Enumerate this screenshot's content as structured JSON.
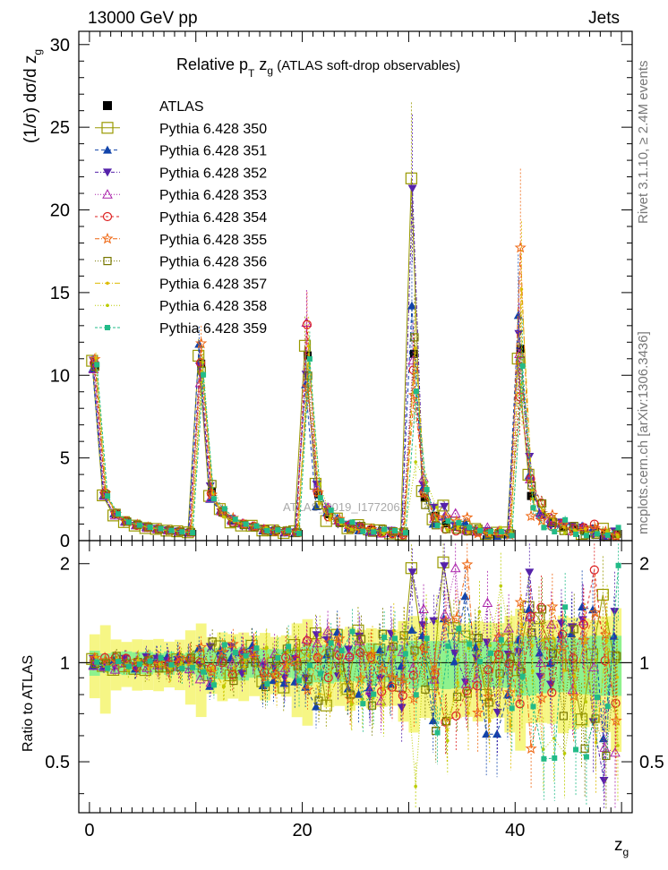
{
  "header": {
    "left": "13000 GeV pp",
    "right": "Jets"
  },
  "title": {
    "main": "Relative p",
    "sub_t": "T",
    "main2": " z",
    "sub_g": "g",
    "paren": " (ATLAS soft-drop observables)"
  },
  "side_text": {
    "rivet": "Rivet 3.1.10, ≥ 2.4M events",
    "mcplots": "mcplots.cern.ch [arXiv:1306.3436]"
  },
  "watermark": "ATLAS_2019_I1772062",
  "chart_data": {
    "type": "scatter",
    "top_panel": {
      "ylabel": "(1/σ) dσ/d z",
      "ylabel_sub": "g",
      "yticks": [
        0,
        5,
        10,
        15,
        20,
        25,
        30
      ],
      "ylim": [
        0,
        30.8
      ],
      "data_x": [
        0.5,
        1.5,
        2.5,
        3.5,
        4.5,
        5.5,
        6.5,
        7.5,
        8.5,
        9.5,
        10.5,
        11.5,
        12.5,
        13.5,
        14.5,
        15.5,
        16.5,
        17.5,
        18.5,
        19.5,
        20.5,
        21.5,
        22.5,
        23.5,
        24.5,
        25.5,
        26.5,
        27.5,
        28.5,
        29.5,
        30.5,
        31.5,
        32.5,
        33.5,
        34.5,
        35.5,
        36.5,
        37.5,
        38.5,
        39.5,
        40.5,
        41.5,
        42.5,
        43.5,
        44.5,
        45.5,
        46.5,
        47.5,
        48.5,
        49.5
      ],
      "data_y": [
        10.6,
        2.8,
        1.6,
        1.15,
        0.95,
        0.8,
        0.7,
        0.62,
        0.55,
        0.5,
        10.7,
        2.95,
        1.7,
        1.2,
        0.95,
        0.8,
        0.7,
        0.62,
        0.55,
        0.5,
        11.2,
        2.8,
        1.6,
        1.1,
        0.9,
        0.75,
        0.65,
        0.57,
        0.5,
        0.45,
        11.3,
        2.6,
        1.5,
        1.05,
        0.85,
        0.7,
        0.6,
        0.52,
        0.46,
        0.42,
        11.6,
        2.7,
        1.55,
        1.05,
        0.85,
        0.7,
        0.6,
        0.52,
        0.45,
        0.4
      ]
    },
    "bottom_panel": {
      "ylabel": "Ratio to ATLAS",
      "yticks": [
        0.5,
        1,
        2
      ],
      "ylim": [
        0.35,
        2.35
      ],
      "yscale": "log"
    },
    "x": {
      "label": "z",
      "label_sub": "g",
      "ticks": [
        0,
        20,
        40
      ],
      "xlim": [
        -1,
        51
      ]
    },
    "series": [
      {
        "name": "ATLAS",
        "color": "#000000",
        "marker": "square-filled"
      },
      {
        "name": "Pythia 6.428 350",
        "color": "#999900",
        "marker": "square-open-large"
      },
      {
        "name": "Pythia 6.428 351",
        "color": "#1144aa",
        "marker": "triangle-up-filled"
      },
      {
        "name": "Pythia 6.428 352",
        "color": "#5522aa",
        "marker": "triangle-down-filled"
      },
      {
        "name": "Pythia 6.428 353",
        "color": "#aa22aa",
        "marker": "triangle-up-open"
      },
      {
        "name": "Pythia 6.428 354",
        "color": "#dd2222",
        "marker": "circle-open"
      },
      {
        "name": "Pythia 6.428 355",
        "color": "#ee6611",
        "marker": "star-open"
      },
      {
        "name": "Pythia 6.428 356",
        "color": "#777700",
        "marker": "square-open"
      },
      {
        "name": "Pythia 6.428 357",
        "color": "#ddbb00",
        "marker": "dot"
      },
      {
        "name": "Pythia 6.428 358",
        "color": "#bbcc00",
        "marker": "dot"
      },
      {
        "name": "Pythia 6.428 359",
        "color": "#22bb88",
        "marker": "square-filled-small"
      }
    ],
    "grid": false,
    "legend_position": "top-left"
  }
}
